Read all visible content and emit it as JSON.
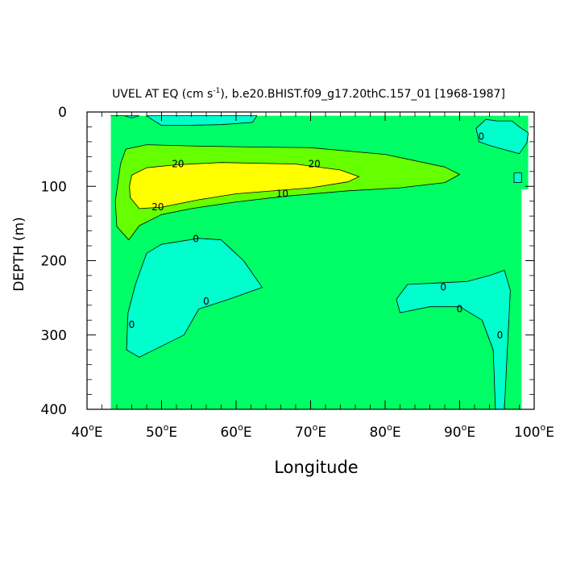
{
  "chart_data": {
    "type": "contour",
    "title_main": "UVEL AT EQ (cm s",
    "title_sup": "-1",
    "title_rest": "), b.e20.BHIST.f09_g17.20thC.157_01 [1968-1987]",
    "xlabel": "Longitude",
    "ylabel": "DEPTH (m)",
    "xlim": [
      40,
      100
    ],
    "ylim": [
      0,
      400
    ],
    "y_inverted": true,
    "x_ticks": [
      {
        "value": 40,
        "label": "40",
        "deg": "o",
        "hemi": "E"
      },
      {
        "value": 50,
        "label": "50",
        "deg": "o",
        "hemi": "E"
      },
      {
        "value": 60,
        "label": "60",
        "deg": "o",
        "hemi": "E"
      },
      {
        "value": 70,
        "label": "70",
        "deg": "o",
        "hemi": "E"
      },
      {
        "value": 80,
        "label": "80",
        "deg": "o",
        "hemi": "E"
      },
      {
        "value": 90,
        "label": "90",
        "deg": "o",
        "hemi": "E"
      },
      {
        "value": 100,
        "label": "100",
        "deg": "o",
        "hemi": "E"
      }
    ],
    "y_ticks": [
      {
        "value": 0,
        "label": "0"
      },
      {
        "value": 100,
        "label": "100"
      },
      {
        "value": 200,
        "label": "200"
      },
      {
        "value": 300,
        "label": "300"
      },
      {
        "value": 400,
        "label": "400"
      }
    ],
    "fill_levels": [
      {
        "range": "< 0",
        "color": "#00ffcc"
      },
      {
        "range": "0 to 10",
        "color": "#00ff66"
      },
      {
        "range": "10 to 20",
        "color": "#66ff00"
      },
      {
        "range": "> 20",
        "color": "#ffff00"
      }
    ],
    "data_domain": {
      "x": [
        43.2,
        98.3
      ],
      "y": [
        5,
        400
      ],
      "extra_x": [
        98.3,
        99.2
      ],
      "extra_y": [
        5,
        104
      ]
    },
    "regions": [
      {
        "level": "< 0",
        "color": "#00ffcc",
        "points": [
          [
            43.2,
            5
          ],
          [
            45,
            5
          ],
          [
            46,
            8
          ],
          [
            47,
            5
          ],
          [
            43.2,
            5
          ]
        ]
      },
      {
        "level": "< 0",
        "color": "#00ffcc",
        "points": [
          [
            48,
            5
          ],
          [
            62.8,
            5
          ],
          [
            62.2,
            14
          ],
          [
            58,
            17
          ],
          [
            53,
            18
          ],
          [
            50,
            18
          ],
          [
            48.7,
            10
          ],
          [
            48,
            5
          ]
        ]
      },
      {
        "level": "10 to 20",
        "color": "#66ff00",
        "points": [
          [
            45.2,
            50
          ],
          [
            48,
            44
          ],
          [
            55,
            46
          ],
          [
            62,
            47
          ],
          [
            70,
            48
          ],
          [
            80,
            57
          ],
          [
            88,
            74
          ],
          [
            90,
            84
          ],
          [
            88,
            95
          ],
          [
            82,
            102
          ],
          [
            75,
            106
          ],
          [
            67,
            113
          ],
          [
            60,
            121
          ],
          [
            54,
            130
          ],
          [
            50,
            138
          ],
          [
            47,
            153
          ],
          [
            45.6,
            172
          ],
          [
            44,
            154
          ],
          [
            43.8,
            120
          ],
          [
            44.5,
            70
          ],
          [
            45.2,
            50
          ]
        ]
      },
      {
        "level": "> 20",
        "color": "#ffff00",
        "points": [
          [
            46,
            85
          ],
          [
            48,
            75
          ],
          [
            52,
            71
          ],
          [
            58,
            68
          ],
          [
            68,
            70
          ],
          [
            74,
            78
          ],
          [
            76.5,
            87
          ],
          [
            75,
            94
          ],
          [
            70,
            102
          ],
          [
            60,
            110
          ],
          [
            55,
            118
          ],
          [
            50,
            128
          ],
          [
            47,
            130
          ],
          [
            45.8,
            115
          ],
          [
            45.7,
            100
          ],
          [
            46,
            85
          ]
        ]
      },
      {
        "level": "< 0",
        "color": "#00ffcc",
        "points": [
          [
            46.5,
            232
          ],
          [
            48,
            190
          ],
          [
            50,
            178
          ],
          [
            55,
            170
          ],
          [
            58,
            172
          ],
          [
            61,
            200
          ],
          [
            63.5,
            236
          ],
          [
            59,
            252
          ],
          [
            55,
            265
          ],
          [
            53,
            300
          ],
          [
            49,
            320
          ],
          [
            47,
            330
          ],
          [
            45.3,
            320
          ],
          [
            45.5,
            270
          ],
          [
            46.5,
            232
          ]
        ]
      },
      {
        "level": "< 0",
        "color": "#00ffcc",
        "points": [
          [
            81.5,
            252
          ],
          [
            83,
            232
          ],
          [
            87,
            230
          ],
          [
            91,
            228
          ],
          [
            94,
            220
          ],
          [
            96,
            213
          ],
          [
            96.8,
            240
          ],
          [
            96.5,
            300
          ],
          [
            96,
            400
          ],
          [
            94.8,
            400
          ],
          [
            94.5,
            320
          ],
          [
            93,
            280
          ],
          [
            90,
            262
          ],
          [
            86,
            262
          ],
          [
            82,
            270
          ],
          [
            81.5,
            252
          ]
        ]
      },
      {
        "level": "< 0",
        "color": "#00ffcc",
        "points": [
          [
            92.2,
            22
          ],
          [
            93.5,
            10
          ],
          [
            95,
            12
          ],
          [
            97,
            12
          ],
          [
            98,
            20
          ],
          [
            99.2,
            28
          ],
          [
            99,
            42
          ],
          [
            98,
            56
          ],
          [
            96.5,
            52
          ],
          [
            94,
            45
          ],
          [
            92.6,
            40
          ],
          [
            92.2,
            22
          ]
        ]
      },
      {
        "level": "< 0",
        "color": "#00ffcc",
        "points": [
          [
            97.3,
            82
          ],
          [
            98.3,
            82
          ],
          [
            98.3,
            95
          ],
          [
            97.3,
            95
          ],
          [
            97.3,
            82
          ]
        ]
      }
    ],
    "contour_labels": [
      {
        "text": "20",
        "x": 52.2,
        "y": 70
      },
      {
        "text": "20",
        "x": 70.5,
        "y": 70
      },
      {
        "text": "10",
        "x": 66.2,
        "y": 110
      },
      {
        "text": "20",
        "x": 49.5,
        "y": 128
      },
      {
        "text": "0",
        "x": 54.6,
        "y": 171
      },
      {
        "text": "0",
        "x": 56,
        "y": 255
      },
      {
        "text": "0",
        "x": 46,
        "y": 286
      },
      {
        "text": "0",
        "x": 87.8,
        "y": 236
      },
      {
        "text": "0",
        "x": 90,
        "y": 265
      },
      {
        "text": "0",
        "x": 95.4,
        "y": 300
      },
      {
        "text": "0",
        "x": 92.9,
        "y": 33
      }
    ]
  }
}
